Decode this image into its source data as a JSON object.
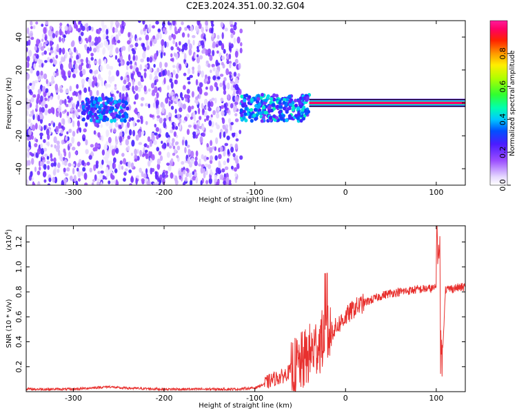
{
  "title": "C2E3.2024.351.00.32.G04",
  "chart_data": [
    {
      "type": "heatmap",
      "xlabel": "Height of straight line (km)",
      "ylabel": "Frequency (Hz)",
      "xlim": [
        -352,
        132
      ],
      "ylim": [
        -50,
        50
      ],
      "x_ticks": [
        -300,
        -200,
        -100,
        0,
        100
      ],
      "y_ticks": [
        -40,
        -20,
        0,
        20,
        40
      ],
      "colorbar": {
        "label": "Normalized spectral amplitude",
        "range": [
          0,
          1
        ],
        "ticks": [
          0.0,
          0.2,
          0.4,
          0.6,
          0.8
        ],
        "tick_labels": [
          "0.0",
          "0.2",
          "0.4",
          "0.6",
          "0.8"
        ]
      },
      "features": [
        {
          "desc": "broadband noise, scattered purple",
          "x_range": [
            -352,
            -115
          ],
          "y_range": [
            -50,
            50
          ],
          "amplitude": 0.15
        },
        {
          "desc": "moderate band near 0 Hz",
          "x_range": [
            -290,
            -240
          ],
          "y_center": -4,
          "amplitude": 0.35
        },
        {
          "desc": "signal band near 0 Hz",
          "x_range": [
            -115,
            -40
          ],
          "y_center": -3,
          "amplitude": 0.4
        },
        {
          "desc": "strong carrier line",
          "x_range": [
            -40,
            132
          ],
          "y_center": 0,
          "amplitude": 0.95
        }
      ]
    },
    {
      "type": "line",
      "xlabel": "Height of straight line (km)",
      "ylabel": "SNR (10 * v/v)",
      "y_scale_label": "(x10",
      "y_scale_exp": "4",
      "y_scale_close": ")",
      "xlim": [
        -352,
        132
      ],
      "ylim": [
        0,
        1.33
      ],
      "x_ticks": [
        -300,
        -200,
        -100,
        0,
        100
      ],
      "y_ticks": [
        0.2,
        0.4,
        0.6,
        0.8,
        1.0,
        1.2
      ],
      "series": [
        {
          "color": "#e8302e",
          "x": [
            -352,
            -300,
            -260,
            -250,
            -200,
            -150,
            -120,
            -100,
            -90,
            -80,
            -70,
            -60,
            -50,
            -40,
            -30,
            -20,
            -10,
            0,
            10,
            20,
            30,
            40,
            50,
            60,
            80,
            100,
            103,
            106,
            110,
            120,
            132
          ],
          "y": [
            0.02,
            0.02,
            0.04,
            0.03,
            0.02,
            0.02,
            0.02,
            0.03,
            0.06,
            0.1,
            0.12,
            0.17,
            0.22,
            0.3,
            0.38,
            0.45,
            0.52,
            0.6,
            0.67,
            0.71,
            0.74,
            0.77,
            0.79,
            0.8,
            0.82,
            0.83,
            1.2,
            0.15,
            0.82,
            0.83,
            0.84
          ]
        }
      ]
    }
  ]
}
